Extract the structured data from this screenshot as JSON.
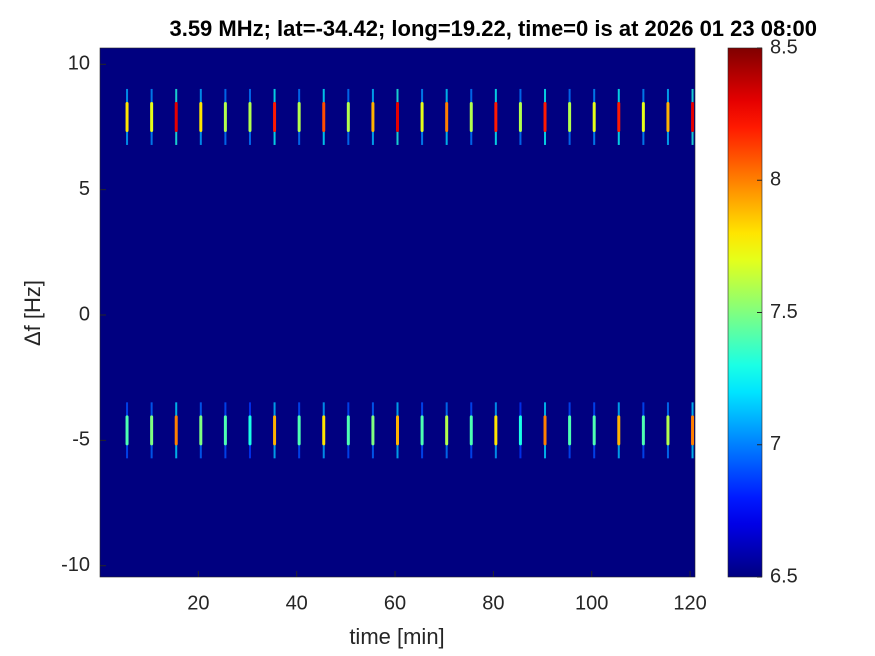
{
  "chart_data": {
    "type": "heatmap",
    "title": "3.59 MHz;  lat=-34.42; long=19.22, time=0 is at 2026 01 23 08:00",
    "xlabel": "time [min]",
    "ylabel": "Δf [Hz]",
    "xlim": [
      0,
      121
    ],
    "ylim": [
      -10.45,
      10.65
    ],
    "xticks": [
      20,
      40,
      60,
      80,
      100,
      120
    ],
    "yticks": [
      -10,
      -5,
      0,
      5,
      10
    ],
    "background": 6.5,
    "clim": [
      6.5,
      8.5
    ],
    "cticks": [
      6.5,
      7,
      7.5,
      8,
      8.5
    ],
    "colormap": "jet",
    "x": [
      5.5,
      10.5,
      15.5,
      20.5,
      25.5,
      30.5,
      35.5,
      40.5,
      45.5,
      50.5,
      55.5,
      60.5,
      65.5,
      70.5,
      75.5,
      80.5,
      85.5,
      90.5,
      95.5,
      100.5,
      105.5,
      110.5,
      115.5,
      120.5
    ],
    "streaks": [
      {
        "f": 7.9,
        "values": [
          7.8,
          7.7,
          8.3,
          7.8,
          7.6,
          7.6,
          8.2,
          7.6,
          8.1,
          7.6,
          7.9,
          8.3,
          7.7,
          8.0,
          7.6,
          8.2,
          7.6,
          8.2,
          7.6,
          7.7,
          8.2,
          7.7,
          7.9,
          8.3
        ]
      },
      {
        "f": -4.6,
        "values": [
          7.4,
          7.5,
          8.0,
          7.5,
          7.4,
          7.3,
          7.9,
          7.4,
          7.8,
          7.4,
          7.5,
          7.9,
          7.4,
          7.6,
          7.4,
          7.8,
          7.3,
          8.0,
          7.4,
          7.4,
          7.9,
          7.4,
          7.6,
          8.0
        ]
      }
    ]
  }
}
